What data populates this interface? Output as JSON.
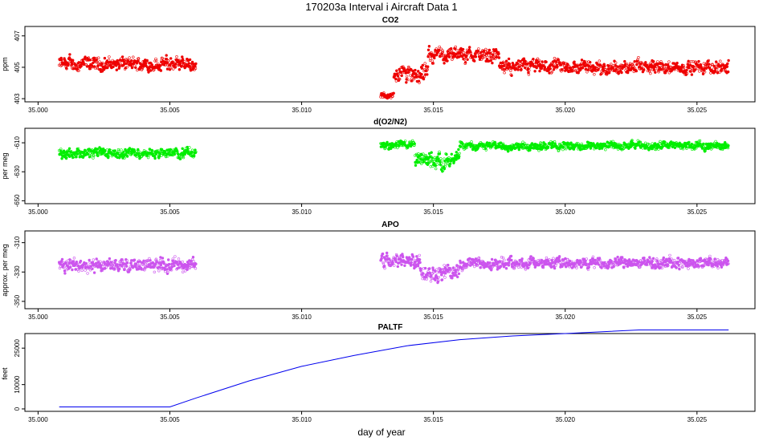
{
  "title": "170203a   Interval i Aircraft Data 1",
  "xlabel": "day of year",
  "x_ticks": [
    "35.000",
    "35.005",
    "35.010",
    "35.015",
    "35.020",
    "35.025"
  ],
  "chart_data": [
    {
      "type": "scatter",
      "title": "CO2",
      "ylabel": "ppm",
      "color": "#ee0000",
      "xlim": [
        34.9995,
        35.0272
      ],
      "ylim": [
        402.8,
        407.6
      ],
      "yticks": [
        403,
        405,
        407
      ],
      "series": [
        {
          "segments": [
            {
              "x_start": 35.0008,
              "x_end": 35.006,
              "mean": 405.2,
              "amp": 0.5
            },
            {
              "x_start": 35.013,
              "x_end": 35.0135,
              "mean": 403.2,
              "amp": 0.2
            },
            {
              "x_start": 35.0135,
              "x_end": 35.0148,
              "mean": 404.6,
              "amp": 0.6
            },
            {
              "x_start": 35.0148,
              "x_end": 35.0175,
              "mean": 405.8,
              "amp": 0.5
            },
            {
              "x_start": 35.0175,
              "x_end": 35.0262,
              "mean": 405.0,
              "amp": 0.5
            }
          ]
        }
      ]
    },
    {
      "type": "scatter",
      "title": "d(O2/N2)",
      "ylabel": "per meg",
      "color": "#00ee00",
      "xlim": [
        34.9995,
        35.0272
      ],
      "ylim": [
        -652,
        -600
      ],
      "yticks": [
        -610,
        -630,
        -650
      ],
      "series": [
        {
          "segments": [
            {
              "x_start": 35.0008,
              "x_end": 35.006,
              "mean": -617,
              "amp": 4
            },
            {
              "x_start": 35.013,
              "x_end": 35.0143,
              "mean": -611,
              "amp": 3
            },
            {
              "x_start": 35.0143,
              "x_end": 35.016,
              "mean": -622,
              "amp": 6
            },
            {
              "x_start": 35.016,
              "x_end": 35.0262,
              "mean": -612,
              "amp": 3
            }
          ]
        }
      ]
    },
    {
      "type": "scatter",
      "title": "APO",
      "ylabel": "approx. per meg",
      "color": "#cc55ee",
      "xlim": [
        34.9995,
        35.0272
      ],
      "ylim": [
        -355,
        -302
      ],
      "yticks": [
        -310,
        -330,
        -350
      ],
      "series": [
        {
          "segments": [
            {
              "x_start": 35.0008,
              "x_end": 35.006,
              "mean": -325,
              "amp": 5
            },
            {
              "x_start": 35.013,
              "x_end": 35.0145,
              "mean": -322,
              "amp": 6
            },
            {
              "x_start": 35.0145,
              "x_end": 35.016,
              "mean": -330,
              "amp": 6
            },
            {
              "x_start": 35.016,
              "x_end": 35.0262,
              "mean": -324,
              "amp": 4
            }
          ]
        }
      ]
    },
    {
      "type": "line",
      "title": "PALTF",
      "ylabel": "feet",
      "color": "#0000ee",
      "xlim": [
        34.9995,
        35.0272
      ],
      "ylim": [
        -1000,
        31000
      ],
      "yticks": [
        0,
        10000,
        25000
      ],
      "series": [
        {
          "x": [
            35.0008,
            35.0046,
            35.005,
            35.006,
            35.008,
            35.01,
            35.012,
            35.014,
            35.016,
            35.018,
            35.02,
            35.0228,
            35.0262
          ],
          "y": [
            800,
            800,
            800,
            4500,
            11500,
            17500,
            22000,
            26000,
            28500,
            30000,
            31000,
            32500,
            32500
          ]
        }
      ]
    }
  ]
}
